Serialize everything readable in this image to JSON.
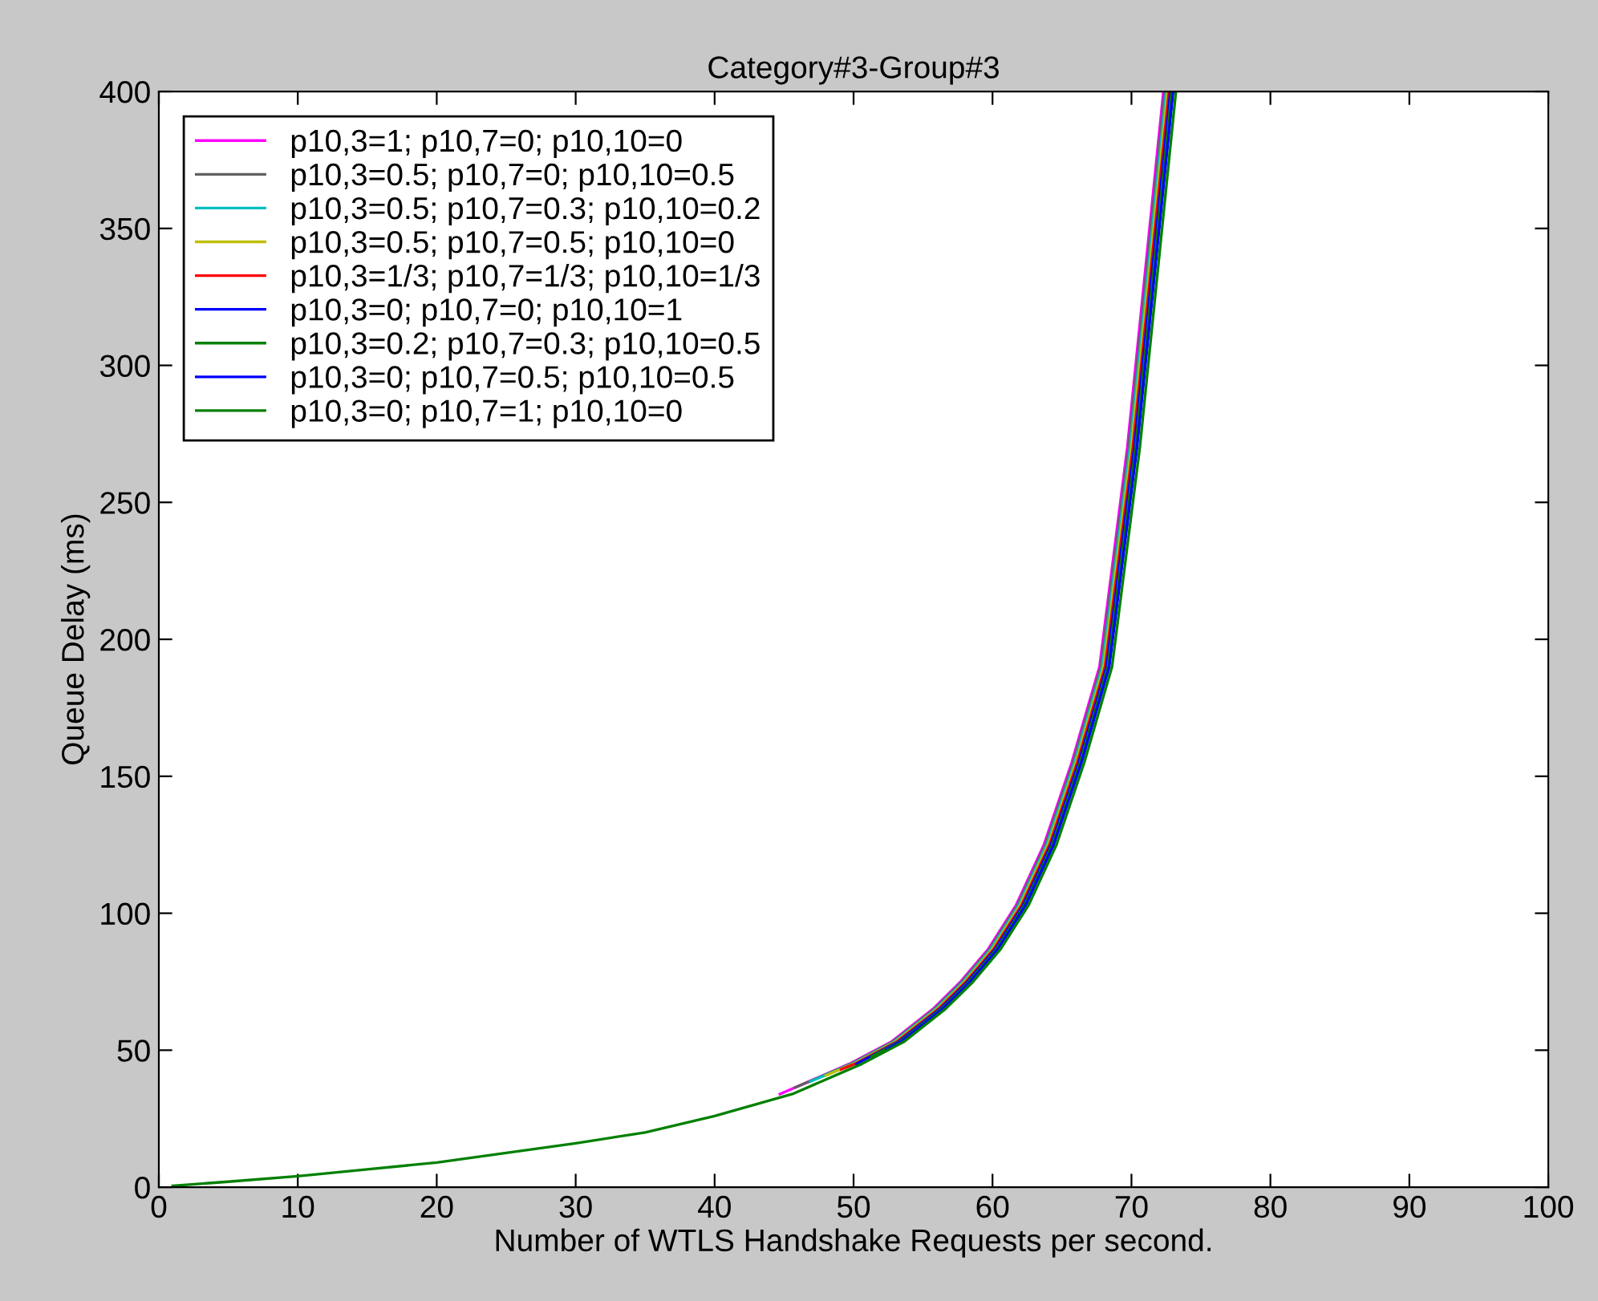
{
  "chart_data": {
    "type": "line",
    "title": "Category#3-Group#3",
    "xlabel": "Number of WTLS Handshake Requests per second.",
    "ylabel": "Queue Delay (ms)",
    "xlim": [
      0,
      100
    ],
    "xticks": [
      0,
      10,
      20,
      30,
      40,
      50,
      60,
      70,
      80,
      90,
      100
    ],
    "ylim": [
      0,
      400
    ],
    "yticks": [
      0,
      50,
      100,
      150,
      200,
      250,
      300,
      350,
      400
    ],
    "grid": false,
    "legend": "top left",
    "marker": "none",
    "line_style": "solid",
    "series": [
      {
        "name": "p10,3=1; p10,7=0; p10,10=0",
        "color": "#ff00ff",
        "x": [
          44.7,
          49.7,
          52.7,
          55.7,
          57.7,
          59.7,
          61.7,
          63.7,
          65.7,
          67.7,
          68.7,
          69.7,
          70.7,
          71.7,
          72.3
        ],
        "values": [
          34,
          45,
          53,
          65,
          75,
          87,
          103,
          125,
          155,
          190,
          230,
          270,
          320,
          370,
          400
        ]
      },
      {
        "name": "p10,3=0.5; p10,7=0; p10,10=0.5",
        "color": "#606060",
        "x": [
          45.8,
          49.8,
          52.8,
          55.8,
          57.8,
          59.8,
          61.8,
          63.8,
          65.8,
          67.8,
          68.8,
          69.8,
          70.8,
          71.8,
          72.4
        ],
        "values": [
          36.4,
          45,
          53,
          65,
          75,
          87,
          103,
          125,
          155,
          190,
          230,
          270,
          320,
          370,
          400
        ]
      },
      {
        "name": "p10,3=0.5; p10,7=0.3; p10,10=0.2",
        "color": "#00bfbf",
        "x": [
          46.9,
          49.9,
          52.9,
          55.9,
          57.9,
          59.9,
          61.9,
          63.9,
          65.9,
          67.9,
          68.9,
          69.9,
          70.9,
          71.9,
          72.5
        ],
        "values": [
          38.6,
          45,
          53,
          65,
          75,
          87,
          103,
          125,
          155,
          190,
          230,
          270,
          320,
          370,
          400
        ]
      },
      {
        "name": "p10,3=0.5; p10,7=0.5; p10,10=0",
        "color": "#bfbf00",
        "x": [
          48,
          50,
          53,
          56,
          58,
          60,
          62,
          64,
          66,
          68,
          69,
          70,
          71,
          72,
          72.6
        ],
        "values": [
          40.8,
          45,
          53,
          65,
          75,
          87,
          103,
          125,
          155,
          190,
          230,
          270,
          320,
          370,
          400
        ]
      },
      {
        "name": "p10,3=1/3; p10,7=1/3; p10,10=1/3",
        "color": "#ff0000",
        "x": [
          49.1,
          50.1,
          53.1,
          56.1,
          58.1,
          60.1,
          62.1,
          64.1,
          66.1,
          68.1,
          69.1,
          70.1,
          71.1,
          72.1,
          72.7
        ],
        "values": [
          43,
          45,
          53,
          65,
          75,
          87,
          103,
          125,
          155,
          190,
          230,
          270,
          320,
          370,
          400
        ]
      },
      {
        "name": "p10,3=0; p10,7=0; p10,10=1",
        "color": "#0000ff",
        "x": [
          50.2,
          53.2,
          56.2,
          58.2,
          60.2,
          62.2,
          64.2,
          66.2,
          68.2,
          69.2,
          70.2,
          71.2,
          72.2,
          72.8
        ],
        "values": [
          45,
          53,
          65,
          75,
          87,
          103,
          125,
          155,
          190,
          230,
          270,
          320,
          370,
          400
        ]
      },
      {
        "name": "p10,3=0.2; p10,7=0.3; p10,10=0.5",
        "color": "#008000",
        "x": [
          51.3,
          53.3,
          56.3,
          58.3,
          60.3,
          62.3,
          64.3,
          66.3,
          68.3,
          69.3,
          70.3,
          71.3,
          72.3,
          72.9
        ],
        "values": [
          47.7,
          53,
          65,
          75,
          87,
          103,
          125,
          155,
          190,
          230,
          270,
          320,
          370,
          400
        ]
      },
      {
        "name": "p10,3=0; p10,7=0.5; p10,10=0.5",
        "color": "#0000ff",
        "x": [
          52.4,
          53.4,
          56.4,
          58.4,
          60.4,
          62.4,
          64.4,
          66.4,
          68.4,
          69.4,
          70.4,
          71.4,
          72.4,
          73
        ],
        "values": [
          50.3,
          53,
          65,
          75,
          87,
          103,
          125,
          155,
          190,
          230,
          270,
          320,
          370,
          400
        ]
      },
      {
        "name": "p10,3=0; p10,7=1; p10,10=0",
        "color": "#008000",
        "x": [
          1,
          5,
          10,
          15,
          20,
          25,
          30,
          35,
          40,
          45.6,
          50.6,
          53.6,
          56.6,
          58.6,
          60.6,
          62.6,
          64.6,
          66.6,
          68.6,
          69.6,
          70.6,
          71.6,
          72.6,
          73.2
        ],
        "values": [
          0.5,
          2,
          4,
          6.5,
          9,
          12.5,
          16,
          20,
          26,
          34,
          45,
          53,
          65,
          75,
          87,
          103,
          125,
          155,
          190,
          230,
          270,
          320,
          370,
          400
        ]
      }
    ]
  }
}
